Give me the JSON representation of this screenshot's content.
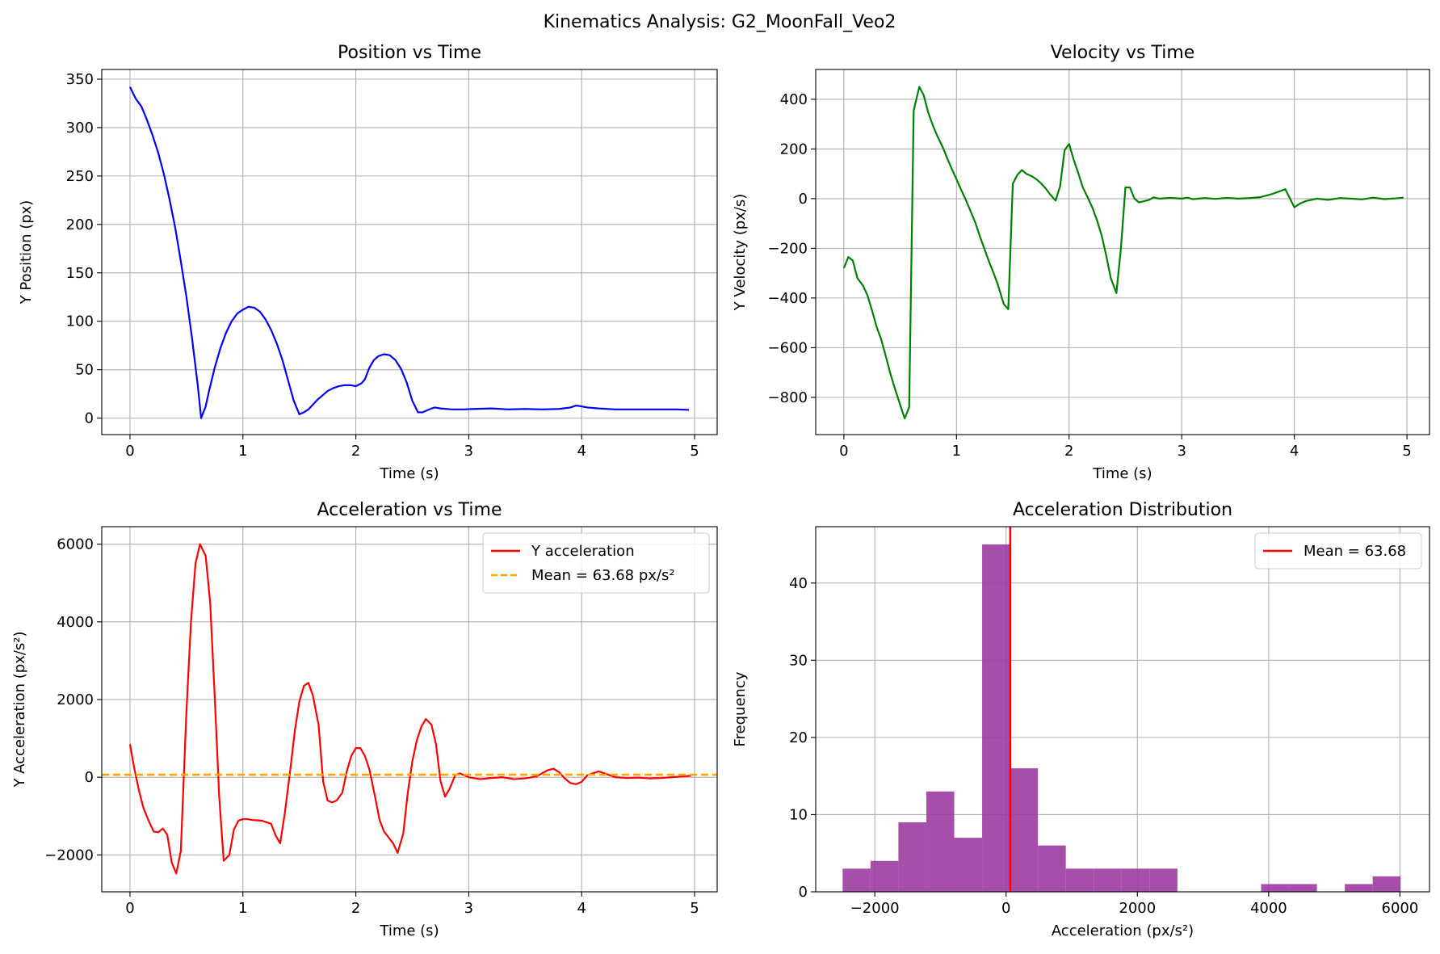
{
  "figure": {
    "title": "Kinematics Analysis: G2_MoonFall_Veo2"
  },
  "chart_data": [
    {
      "id": "position",
      "type": "line",
      "title": "Position vs Time",
      "xlabel": "Time (s)",
      "ylabel": "Y Position (px)",
      "xlim": [
        -0.25,
        5.2
      ],
      "ylim": [
        -17,
        360
      ],
      "xticks": [
        0,
        1,
        2,
        3,
        4,
        5
      ],
      "yticks": [
        0,
        50,
        100,
        150,
        200,
        250,
        300,
        350
      ],
      "grid": true,
      "series": [
        {
          "name": "Y position",
          "color": "#0000ff",
          "x": [
            0,
            0.05,
            0.1,
            0.15,
            0.2,
            0.25,
            0.3,
            0.35,
            0.4,
            0.45,
            0.5,
            0.55,
            0.6,
            0.63,
            0.67,
            0.7,
            0.75,
            0.8,
            0.85,
            0.9,
            0.95,
            1.0,
            1.05,
            1.1,
            1.15,
            1.2,
            1.25,
            1.3,
            1.35,
            1.4,
            1.45,
            1.5,
            1.54,
            1.58,
            1.62,
            1.66,
            1.7,
            1.75,
            1.8,
            1.85,
            1.9,
            1.95,
            2.0,
            2.05,
            2.08,
            2.12,
            2.16,
            2.2,
            2.25,
            2.3,
            2.35,
            2.4,
            2.45,
            2.5,
            2.55,
            2.59,
            2.63,
            2.67,
            2.7,
            2.75,
            2.85,
            2.95,
            3.05,
            3.2,
            3.35,
            3.5,
            3.65,
            3.8,
            3.9,
            3.95,
            3.98,
            4.05,
            4.15,
            4.3,
            4.5,
            4.7,
            4.85,
            4.95
          ],
          "y": [
            342,
            330,
            322,
            308,
            292,
            274,
            252,
            226,
            197,
            162,
            125,
            82,
            34,
            0,
            12,
            28,
            52,
            72,
            88,
            100,
            108,
            112,
            115,
            114,
            110,
            102,
            91,
            77,
            60,
            39,
            18,
            4,
            6,
            9,
            14,
            19,
            23,
            28,
            31,
            33,
            34,
            34,
            33,
            36,
            40,
            52,
            60,
            64,
            66,
            65,
            60,
            51,
            37,
            18,
            6,
            6,
            8,
            10,
            11,
            10,
            9,
            9,
            9.5,
            10,
            9,
            9.5,
            9,
            9.5,
            11,
            13,
            12.5,
            11,
            10,
            9,
            9,
            9,
            9,
            8.5
          ]
        }
      ]
    },
    {
      "id": "velocity",
      "type": "line",
      "title": "Velocity vs Time",
      "xlabel": "Time (s)",
      "ylabel": "Y Velocity (px/s)",
      "xlim": [
        -0.25,
        5.2
      ],
      "ylim": [
        -950,
        520
      ],
      "xticks": [
        0,
        1,
        2,
        3,
        4,
        5
      ],
      "yticks": [
        -800,
        -600,
        -400,
        -200,
        0,
        200,
        400
      ],
      "grid": true,
      "series": [
        {
          "name": "Y velocity",
          "color": "#008000",
          "x": [
            0,
            0.04,
            0.08,
            0.12,
            0.17,
            0.21,
            0.25,
            0.29,
            0.33,
            0.37,
            0.41,
            0.45,
            0.5,
            0.54,
            0.58,
            0.62,
            0.67,
            0.71,
            0.75,
            0.79,
            0.83,
            0.88,
            0.92,
            0.96,
            1.0,
            1.04,
            1.08,
            1.12,
            1.17,
            1.21,
            1.25,
            1.29,
            1.33,
            1.37,
            1.42,
            1.46,
            1.5,
            1.54,
            1.58,
            1.62,
            1.67,
            1.71,
            1.75,
            1.79,
            1.83,
            1.88,
            1.92,
            1.96,
            2.0,
            2.04,
            2.08,
            2.12,
            2.17,
            2.21,
            2.25,
            2.29,
            2.33,
            2.37,
            2.42,
            2.46,
            2.5,
            2.54,
            2.58,
            2.62,
            2.67,
            2.71,
            2.75,
            2.8,
            2.9,
            3.0,
            3.05,
            3.1,
            3.15,
            3.2,
            3.3,
            3.4,
            3.5,
            3.6,
            3.7,
            3.8,
            3.92,
            4.0,
            4.05,
            4.1,
            4.2,
            4.3,
            4.4,
            4.5,
            4.6,
            4.7,
            4.8,
            4.9,
            4.97
          ],
          "y": [
            -280,
            -235,
            -250,
            -320,
            -350,
            -390,
            -450,
            -515,
            -565,
            -630,
            -700,
            -760,
            -830,
            -885,
            -840,
            355,
            450,
            415,
            345,
            295,
            252,
            205,
            160,
            118,
            78,
            37,
            -2,
            -45,
            -100,
            -155,
            -205,
            -255,
            -300,
            -350,
            -425,
            -445,
            60,
            95,
            115,
            100,
            90,
            78,
            62,
            42,
            18,
            -8,
            50,
            195,
            220,
            158,
            105,
            47,
            0,
            -40,
            -90,
            -150,
            -230,
            -320,
            -380,
            -200,
            45,
            45,
            0,
            -15,
            -10,
            -5,
            5,
            0,
            3,
            0,
            4,
            -2,
            0,
            2,
            -1,
            3,
            0,
            2,
            6,
            18,
            38,
            -35,
            -20,
            -10,
            0,
            -5,
            2,
            0,
            -3,
            4,
            -2,
            1,
            4
          ]
        }
      ]
    },
    {
      "id": "acceleration",
      "type": "line",
      "title": "Acceleration vs Time",
      "xlabel": "Time (s)",
      "ylabel": "Y Acceleration (px/s²)",
      "xlim": [
        -0.25,
        5.2
      ],
      "ylim": [
        -2950,
        6450
      ],
      "xticks": [
        0,
        1,
        2,
        3,
        4,
        5
      ],
      "yticks": [
        -2000,
        0,
        2000,
        4000,
        6000
      ],
      "grid": true,
      "legend": "top-right",
      "series": [
        {
          "name": "Y acceleration",
          "color": "#ff0000",
          "style": "solid",
          "x": [
            0,
            0.04,
            0.08,
            0.12,
            0.17,
            0.21,
            0.25,
            0.29,
            0.33,
            0.37,
            0.41,
            0.45,
            0.5,
            0.54,
            0.58,
            0.62,
            0.67,
            0.71,
            0.75,
            0.79,
            0.83,
            0.88,
            0.92,
            0.96,
            1.0,
            1.04,
            1.08,
            1.12,
            1.17,
            1.21,
            1.25,
            1.29,
            1.33,
            1.37,
            1.42,
            1.46,
            1.5,
            1.54,
            1.58,
            1.62,
            1.67,
            1.71,
            1.75,
            1.79,
            1.83,
            1.88,
            1.92,
            1.96,
            2.0,
            2.04,
            2.08,
            2.12,
            2.17,
            2.21,
            2.25,
            2.29,
            2.33,
            2.37,
            2.42,
            2.46,
            2.5,
            2.54,
            2.58,
            2.62,
            2.67,
            2.71,
            2.75,
            2.79,
            2.83,
            2.88,
            2.92,
            2.96,
            3.0,
            3.1,
            3.2,
            3.3,
            3.4,
            3.5,
            3.6,
            3.65,
            3.7,
            3.75,
            3.8,
            3.85,
            3.9,
            3.95,
            4.0,
            4.05,
            4.1,
            4.15,
            4.2,
            4.3,
            4.4,
            4.5,
            4.6,
            4.7,
            4.8,
            4.9,
            4.97
          ],
          "y": [
            850,
            200,
            -350,
            -800,
            -1150,
            -1400,
            -1420,
            -1320,
            -1480,
            -2200,
            -2480,
            -1900,
            1700,
            4000,
            5500,
            6000,
            5700,
            4500,
            2100,
            -500,
            -2150,
            -2000,
            -1350,
            -1120,
            -1080,
            -1080,
            -1100,
            -1110,
            -1120,
            -1160,
            -1200,
            -1500,
            -1700,
            -950,
            200,
            1200,
            1950,
            2350,
            2430,
            2100,
            1350,
            -100,
            -600,
            -650,
            -600,
            -400,
            150,
            550,
            750,
            750,
            550,
            200,
            -500,
            -1100,
            -1400,
            -1550,
            -1700,
            -1950,
            -1450,
            -400,
            400,
            950,
            1300,
            1500,
            1350,
            850,
            -100,
            -500,
            -300,
            50,
            100,
            50,
            0,
            -50,
            -20,
            0,
            -50,
            -30,
            20,
            100,
            180,
            220,
            130,
            -30,
            -150,
            -180,
            -120,
            50,
            100,
            150,
            100,
            0,
            -20,
            -10,
            -30,
            -20,
            0,
            20,
            40
          ]
        },
        {
          "name": "Mean = 63.68 px/s²",
          "color": "#ffa500",
          "style": "dashed",
          "value": 63.68
        }
      ]
    },
    {
      "id": "distribution",
      "type": "histogram",
      "title": "Acceleration Distribution",
      "xlabel": "Acceleration (px/s²)",
      "ylabel": "Frequency",
      "xlim": [
        -2900,
        6450
      ],
      "ylim": [
        0,
        47.3
      ],
      "xticks": [
        -2000,
        0,
        2000,
        4000,
        6000
      ],
      "yticks": [
        0,
        10,
        20,
        30,
        40
      ],
      "grid": true,
      "legend": "top-right",
      "bar_color": "#9c3ba0",
      "bins": [
        {
          "from": -2490,
          "to": -2065,
          "count": 3
        },
        {
          "from": -2065,
          "to": -1640,
          "count": 4
        },
        {
          "from": -1640,
          "to": -1215,
          "count": 9
        },
        {
          "from": -1215,
          "to": -790,
          "count": 13
        },
        {
          "from": -790,
          "to": -365,
          "count": 7
        },
        {
          "from": -365,
          "to": 60,
          "count": 45
        },
        {
          "from": 60,
          "to": 485,
          "count": 16
        },
        {
          "from": 485,
          "to": 910,
          "count": 6
        },
        {
          "from": 910,
          "to": 1335,
          "count": 3
        },
        {
          "from": 1335,
          "to": 1760,
          "count": 3
        },
        {
          "from": 1760,
          "to": 2185,
          "count": 3
        },
        {
          "from": 2185,
          "to": 2610,
          "count": 3
        },
        {
          "from": 2610,
          "to": 3035,
          "count": 0
        },
        {
          "from": 3035,
          "to": 3460,
          "count": 0
        },
        {
          "from": 3460,
          "to": 3885,
          "count": 0
        },
        {
          "from": 3885,
          "to": 4310,
          "count": 1
        },
        {
          "from": 4310,
          "to": 4735,
          "count": 1
        },
        {
          "from": 4735,
          "to": 5160,
          "count": 0
        },
        {
          "from": 5160,
          "to": 5585,
          "count": 1
        },
        {
          "from": 5585,
          "to": 6010,
          "count": 2
        }
      ],
      "mean_line": {
        "name": "Mean = 63.68",
        "value": 63.68,
        "color": "#ff0000"
      }
    }
  ]
}
